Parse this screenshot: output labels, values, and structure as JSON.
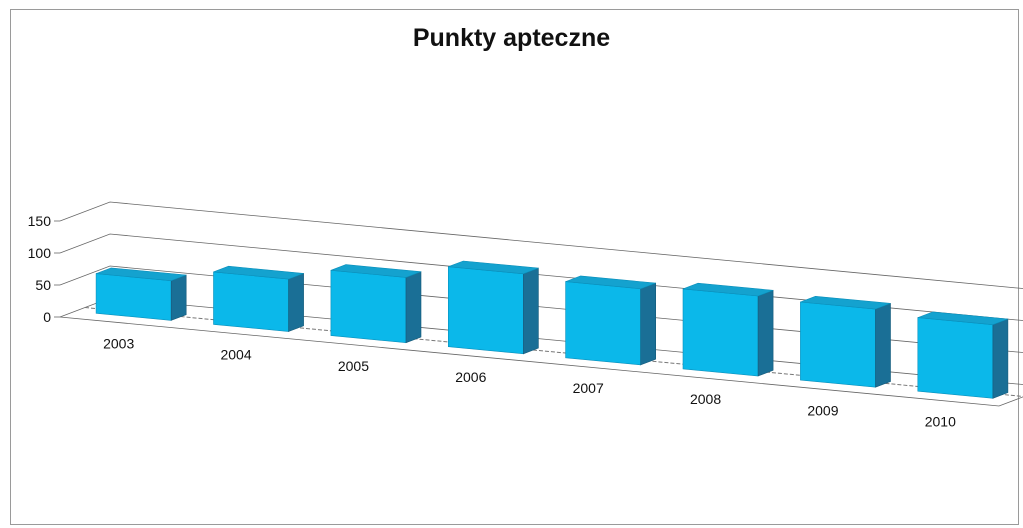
{
  "chart_data": {
    "type": "bar",
    "title": "Punkty apteczne",
    "categories": [
      "2003",
      "2004",
      "2005",
      "2006",
      "2007",
      "2008",
      "2009",
      "2010"
    ],
    "values": [
      62,
      82,
      102,
      125,
      119,
      125,
      122,
      115
    ],
    "ylim": [
      0,
      150
    ],
    "yticks": [
      0,
      50,
      100,
      150
    ],
    "xlabel": "",
    "ylabel": "",
    "grid": true,
    "style": "3d",
    "colors": {
      "front": "#0bb8ea",
      "top": "#14a2cf",
      "side": "#1a6f96",
      "grid": "#666666"
    }
  }
}
